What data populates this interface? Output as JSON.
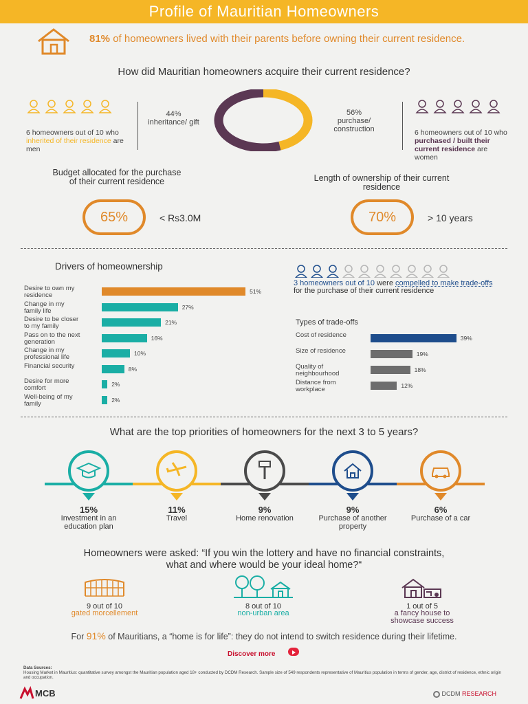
{
  "banner": {
    "title": "Profile of Mauritian Homeowners"
  },
  "intro": {
    "pct": "81%",
    "text": "of homeowners lived with their parents before owning their current residence."
  },
  "acquire": {
    "question": "How did Mauritian homeowners acquire their current residence?",
    "left_pct": "44%",
    "left_label": "inheritance/ gift",
    "right_pct": "56%",
    "right_label": "purchase/ construction",
    "men_a": "6 homeowners out of 10 who",
    "men_b": "inherited of their residence",
    "men_c": "are men",
    "women_a": "6 homeowners out of 10 who",
    "women_b": "purchased / built their current residence",
    "women_c": "are women",
    "donut": [
      44,
      56
    ],
    "colors": {
      "gift": "#f5b626",
      "purchase": "#5b3853"
    }
  },
  "budget": {
    "title": "Budget allocated for the purchase of their current residence",
    "pct": "65%",
    "label": "< Rs3.0M"
  },
  "ownership": {
    "title": "Length of ownership of their current residence",
    "pct": "70%",
    "label": "> 10 years"
  },
  "drivers": {
    "title": "Drivers of homeownership",
    "items": [
      {
        "label": "Desire to own my residence",
        "value": 51,
        "display": "51%",
        "color": "#e0892a"
      },
      {
        "label": "Change in my family life",
        "value": 27,
        "display": "27%",
        "color": "#1aaea5"
      },
      {
        "label": "Desire to be closer to my family",
        "value": 21,
        "display": "21%",
        "color": "#1aaea5"
      },
      {
        "label": "Pass on to the next generation",
        "value": 16,
        "display": "16%",
        "color": "#1aaea5"
      },
      {
        "label": "Change in my professional life",
        "value": 10,
        "display": "10%",
        "color": "#1aaea5"
      },
      {
        "label": "Financial security",
        "value": 8,
        "display": "8%",
        "color": "#1aaea5"
      },
      {
        "label": "Desire for more comfort",
        "value": 2,
        "display": "2%",
        "color": "#1aaea5"
      },
      {
        "label": "Well-being of my family",
        "value": 2,
        "display": "2%",
        "color": "#1aaea5"
      }
    ]
  },
  "tradeoffs": {
    "lead_a": "3 homeowners out of 10",
    "lead_b": "were",
    "lead_c": "compelled to make trade-offs",
    "lead_d": "for the purchase of their current residence",
    "title": "Types of trade-offs",
    "items": [
      {
        "label": "Cost of residence",
        "value": 39,
        "display": "39%",
        "color": "#1e4d8c"
      },
      {
        "label": "Size of residence",
        "value": 19,
        "display": "19%",
        "color": "#6d6d6d"
      },
      {
        "label": "Quality of neighbourhood",
        "value": 18,
        "display": "18%",
        "color": "#6d6d6d"
      },
      {
        "label": "Distance from workplace",
        "value": 12,
        "display": "12%",
        "color": "#6d6d6d"
      }
    ]
  },
  "priorities": {
    "question": "What are the top priorities of homeowners for the next 3 to 5 years?",
    "items": [
      {
        "pct": "15%",
        "label": "Investment in an education plan",
        "color": "#1aaea5",
        "icon": "graduation-cap-icon"
      },
      {
        "pct": "11%",
        "label": "Travel",
        "color": "#f5b626",
        "icon": "airplane-icon"
      },
      {
        "pct": "9%",
        "label": "Home renovation",
        "color": "#4a4a4a",
        "icon": "paint-roller-icon"
      },
      {
        "pct": "9%",
        "label": "Purchase of another property",
        "color": "#1e4d8c",
        "icon": "house-icon"
      },
      {
        "pct": "6%",
        "label": "Purchase of a car",
        "color": "#e0892a",
        "icon": "car-icon"
      }
    ]
  },
  "lottery": {
    "question_1": "Homeowners were asked: “If you win the lottery and have no financial constraints,",
    "question_2": "what and where would be your ideal home?“",
    "items": [
      {
        "num": "9 out of 10",
        "label": "gated morcellement",
        "color": "#e0892a"
      },
      {
        "num": "8 out of 10",
        "label": "non-urban area",
        "color": "#1aaea5"
      },
      {
        "num": "1 out of 5",
        "label": "a fancy house to showcase success",
        "color": "#5b3853"
      }
    ]
  },
  "home_for_life": {
    "pre": "For",
    "pct": "91%",
    "text": "of Mauritians, a “home is for life”: they do not intend to switch residence during their lifetime."
  },
  "discover": {
    "label": "Discover more"
  },
  "sources": {
    "title": "Data Sources:",
    "text": "Housing Market in Mauritius: quantitative survey amongst the Mauritian population aged 18+ conducted by DCDM Research. Sample size of 549 respondents representative of Mauritius population in terms of gender, age, district of residence, ethnic origin and occupation."
  },
  "footer": {
    "mcb": "MCB",
    "dcdm": "DCDM",
    "research": "RESEARCH"
  }
}
